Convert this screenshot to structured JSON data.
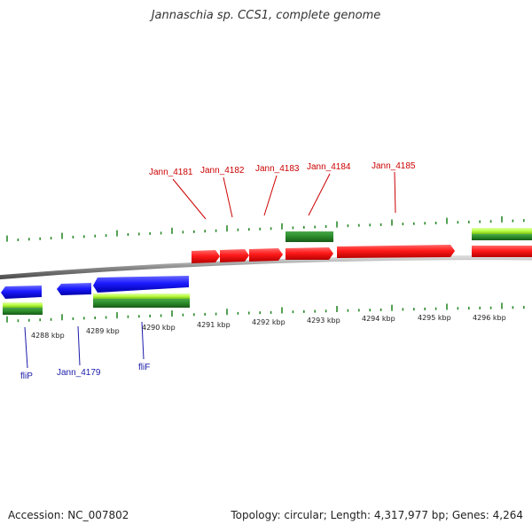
{
  "title": "Jannaschia sp. CCS1, complete genome",
  "footer": {
    "accession": "Accession: NC_007802",
    "summary": "Topology: circular; Length: 4,317,977 bp; Genes: 4,264"
  },
  "colors": {
    "forward_gene": "#ff1a1a",
    "reverse_gene": "#1a1aff",
    "feature_green": "#2a8a2a",
    "feature_lime": "#b8ff40",
    "forward_label": "#cc0000",
    "reverse_label": "#1a1aaa",
    "tick": "#2a8a2a",
    "backbone": "#8a8a8a"
  },
  "scale_labels": [
    "4288 kbp",
    "4289 kbp",
    "4290 kbp",
    "4291 kbp",
    "4292 kbp",
    "4293 kbp",
    "4294 kbp",
    "4295 kbp",
    "4296 kbp"
  ],
  "forward_gene_labels": [
    "Jann_4181",
    "Jann_4182",
    "Jann_4183",
    "Jann_4184",
    "Jann_4185"
  ],
  "reverse_gene_labels": [
    "fliP",
    "Jann_4179",
    "fliF"
  ]
}
